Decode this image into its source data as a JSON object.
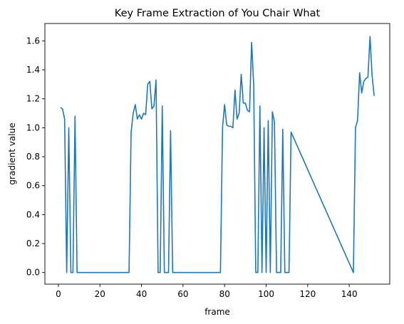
{
  "chart_data": {
    "type": "line",
    "title": "Key Frame Extraction of You Chair What",
    "xlabel": "frame",
    "ylabel": "gradient value",
    "xlim": [
      -6.5,
      159.5
    ],
    "ylim": [
      -0.08,
      1.72
    ],
    "xticks": [
      0,
      20,
      40,
      60,
      80,
      100,
      120,
      140
    ],
    "yticks": [
      0.0,
      0.2,
      0.4,
      0.6,
      0.8,
      1.0,
      1.2,
      1.4,
      1.6
    ],
    "xtick_labels": [
      "0",
      "20",
      "40",
      "60",
      "80",
      "100",
      "120",
      "140"
    ],
    "ytick_labels": [
      "0.0",
      "0.2",
      "0.4",
      "0.6",
      "0.8",
      "1.0",
      "1.2",
      "1.4",
      "1.6"
    ],
    "grid": false,
    "color": "#1f77b4",
    "series": [
      {
        "x": [
          1,
          2,
          3,
          4,
          5,
          6,
          7,
          8,
          9,
          34,
          35,
          36,
          37,
          38,
          39,
          40,
          41,
          42,
          43,
          44,
          45,
          46,
          47,
          48,
          49,
          50,
          51,
          52,
          53,
          54,
          55,
          78,
          79,
          80,
          81,
          82,
          83,
          84,
          85,
          86,
          87,
          88,
          89,
          90,
          91,
          92,
          93,
          94,
          95,
          96,
          97,
          98,
          99,
          100,
          101,
          102,
          103,
          104,
          105,
          106,
          107,
          108,
          109,
          110,
          111,
          112,
          142,
          143,
          144,
          145,
          146,
          147,
          148,
          149,
          150,
          151,
          152
        ],
        "values": [
          1.14,
          1.13,
          1.06,
          0.0,
          1.0,
          0.0,
          0.0,
          1.08,
          0.0,
          0.0,
          0.97,
          1.1,
          1.16,
          1.06,
          1.09,
          1.06,
          1.1,
          1.09,
          1.3,
          1.32,
          1.13,
          1.15,
          1.33,
          0.0,
          0.0,
          1.15,
          0.0,
          0.0,
          0.0,
          0.98,
          0.0,
          0.0,
          1.0,
          1.16,
          1.02,
          1.01,
          1.01,
          1.0,
          1.26,
          1.06,
          1.1,
          1.37,
          1.17,
          1.17,
          1.12,
          1.11,
          1.59,
          1.3,
          0.0,
          0.0,
          1.15,
          0.0,
          1.0,
          0.0,
          1.05,
          0.0,
          1.11,
          1.04,
          0.0,
          0.0,
          0.0,
          0.99,
          0.0,
          0.0,
          0.0,
          0.97,
          0.0,
          1.0,
          1.05,
          1.38,
          1.24,
          1.32,
          1.34,
          1.35,
          1.63,
          1.36,
          1.22
        ]
      }
    ]
  }
}
